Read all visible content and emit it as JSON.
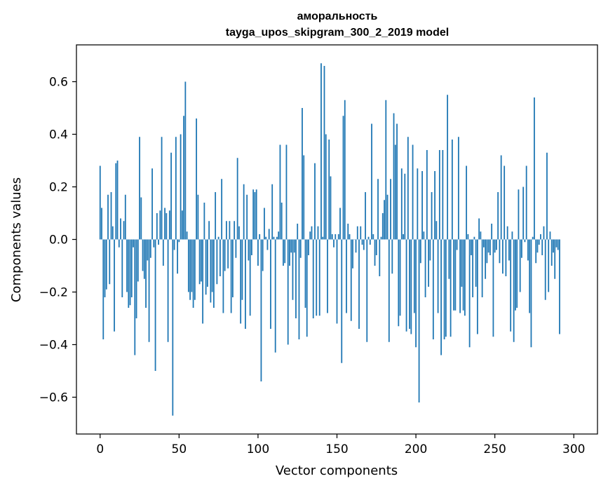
{
  "chart_data": {
    "type": "bar",
    "title": "аморальность",
    "subtitle": "tayga_upos_skipgram_300_2_2019 model",
    "xlabel": "Vector components",
    "ylabel": "Components values",
    "xlim": [
      -15,
      315
    ],
    "ylim": [
      -0.74,
      0.74
    ],
    "xticks": [
      0,
      50,
      100,
      150,
      200,
      250,
      300
    ],
    "xtick_labels": [
      "0",
      "50",
      "100",
      "150",
      "200",
      "250",
      "300"
    ],
    "yticks": [
      -0.6,
      -0.4,
      -0.2,
      0.0,
      0.2,
      0.4,
      0.6
    ],
    "ytick_labels": [
      "−0.6",
      "−0.4",
      "−0.2",
      "0.0",
      "0.2",
      "0.4",
      "0.6"
    ],
    "grid": false,
    "bar_color": "#1f77b4",
    "values": [
      0.28,
      0.12,
      -0.38,
      -0.22,
      -0.19,
      0.17,
      -0.17,
      0.18,
      0.05,
      -0.35,
      0.29,
      0.3,
      -0.03,
      0.08,
      -0.22,
      0.07,
      0.17,
      -0.2,
      -0.26,
      -0.25,
      -0.22,
      -0.03,
      -0.44,
      -0.3,
      -0.16,
      0.39,
      0.16,
      -0.12,
      -0.15,
      -0.26,
      -0.08,
      -0.39,
      -0.07,
      0.27,
      -0.03,
      -0.5,
      0.1,
      -0.02,
      0.11,
      0.39,
      -0.1,
      0.12,
      0.1,
      -0.39,
      0.11,
      0.33,
      -0.67,
      -0.04,
      0.39,
      -0.13,
      -0.01,
      0.4,
      0.11,
      0.47,
      0.6,
      0.03,
      -0.2,
      -0.23,
      -0.2,
      -0.26,
      -0.23,
      0.46,
      0.17,
      -0.17,
      -0.16,
      -0.32,
      0.14,
      -0.21,
      -0.18,
      0.07,
      -0.24,
      -0.2,
      -0.26,
      0.18,
      -0.17,
      0.01,
      -0.14,
      0.23,
      -0.28,
      -0.12,
      0.07,
      -0.11,
      0.07,
      -0.28,
      -0.22,
      0.07,
      -0.07,
      0.31,
      0.05,
      -0.32,
      -0.23,
      0.21,
      -0.34,
      0.17,
      -0.08,
      -0.29,
      -0.06,
      0.19,
      0.18,
      0.19,
      -0.1,
      0.02,
      -0.54,
      -0.12,
      0.12,
      0.01,
      -0.04,
      0.04,
      -0.34,
      0.21,
      0.01,
      -0.43,
      0.01,
      0.03,
      0.36,
      0.14,
      -0.1,
      -0.09,
      0.36,
      -0.4,
      -0.1,
      -0.05,
      -0.23,
      -0.05,
      -0.3,
      0.06,
      -0.38,
      -0.07,
      0.5,
      0.32,
      -0.26,
      -0.37,
      -0.06,
      0.03,
      0.05,
      -0.3,
      0.29,
      -0.29,
      0.05,
      -0.29,
      0.67,
      0.01,
      0.66,
      0.4,
      -0.28,
      0.38,
      0.24,
      0.02,
      -0.03,
      0.02,
      -0.32,
      0.02,
      0.12,
      -0.47,
      0.47,
      0.53,
      -0.28,
      0.06,
      0.02,
      -0.31,
      -0.11,
      0.0,
      -0.05,
      0.05,
      -0.34,
      0.05,
      -0.02,
      -0.04,
      0.18,
      -0.39,
      0.01,
      -0.02,
      0.44,
      0.02,
      -0.1,
      -0.06,
      0.23,
      -0.14,
      0.01,
      0.1,
      0.15,
      0.53,
      0.17,
      -0.39,
      0.23,
      -0.13,
      0.48,
      0.36,
      0.44,
      -0.33,
      -0.29,
      0.27,
      0.02,
      0.25,
      -0.35,
      0.39,
      -0.34,
      -0.36,
      0.36,
      -0.28,
      -0.41,
      0.27,
      -0.62,
      -0.09,
      0.26,
      0.03,
      -0.22,
      0.34,
      -0.18,
      -0.08,
      0.18,
      -0.38,
      0.26,
      0.07,
      -0.28,
      0.34,
      -0.44,
      0.34,
      -0.38,
      -0.37,
      0.55,
      -0.15,
      -0.37,
      0.38,
      -0.27,
      -0.27,
      -0.04,
      0.39,
      -0.28,
      -0.18,
      -0.27,
      -0.29,
      0.28,
      0.02,
      -0.41,
      -0.06,
      -0.22,
      0.01,
      -0.18,
      -0.36,
      0.08,
      0.03,
      -0.22,
      -0.03,
      -0.15,
      -0.09,
      -0.05,
      -0.06,
      0.06,
      -0.37,
      -0.05,
      -0.04,
      0.18,
      -0.09,
      0.32,
      -0.13,
      0.28,
      -0.14,
      0.05,
      -0.08,
      -0.35,
      0.03,
      -0.39,
      -0.27,
      -0.26,
      0.19,
      -0.2,
      -0.07,
      0.2,
      -0.01,
      0.28,
      -0.08,
      -0.28,
      -0.41,
      0.01,
      0.54,
      -0.09,
      -0.05,
      -0.02,
      0.02,
      -0.06,
      0.05,
      -0.23,
      0.33,
      -0.2,
      0.03,
      -0.1,
      -0.05,
      -0.15,
      -0.03,
      -0.04,
      -0.36
    ]
  }
}
